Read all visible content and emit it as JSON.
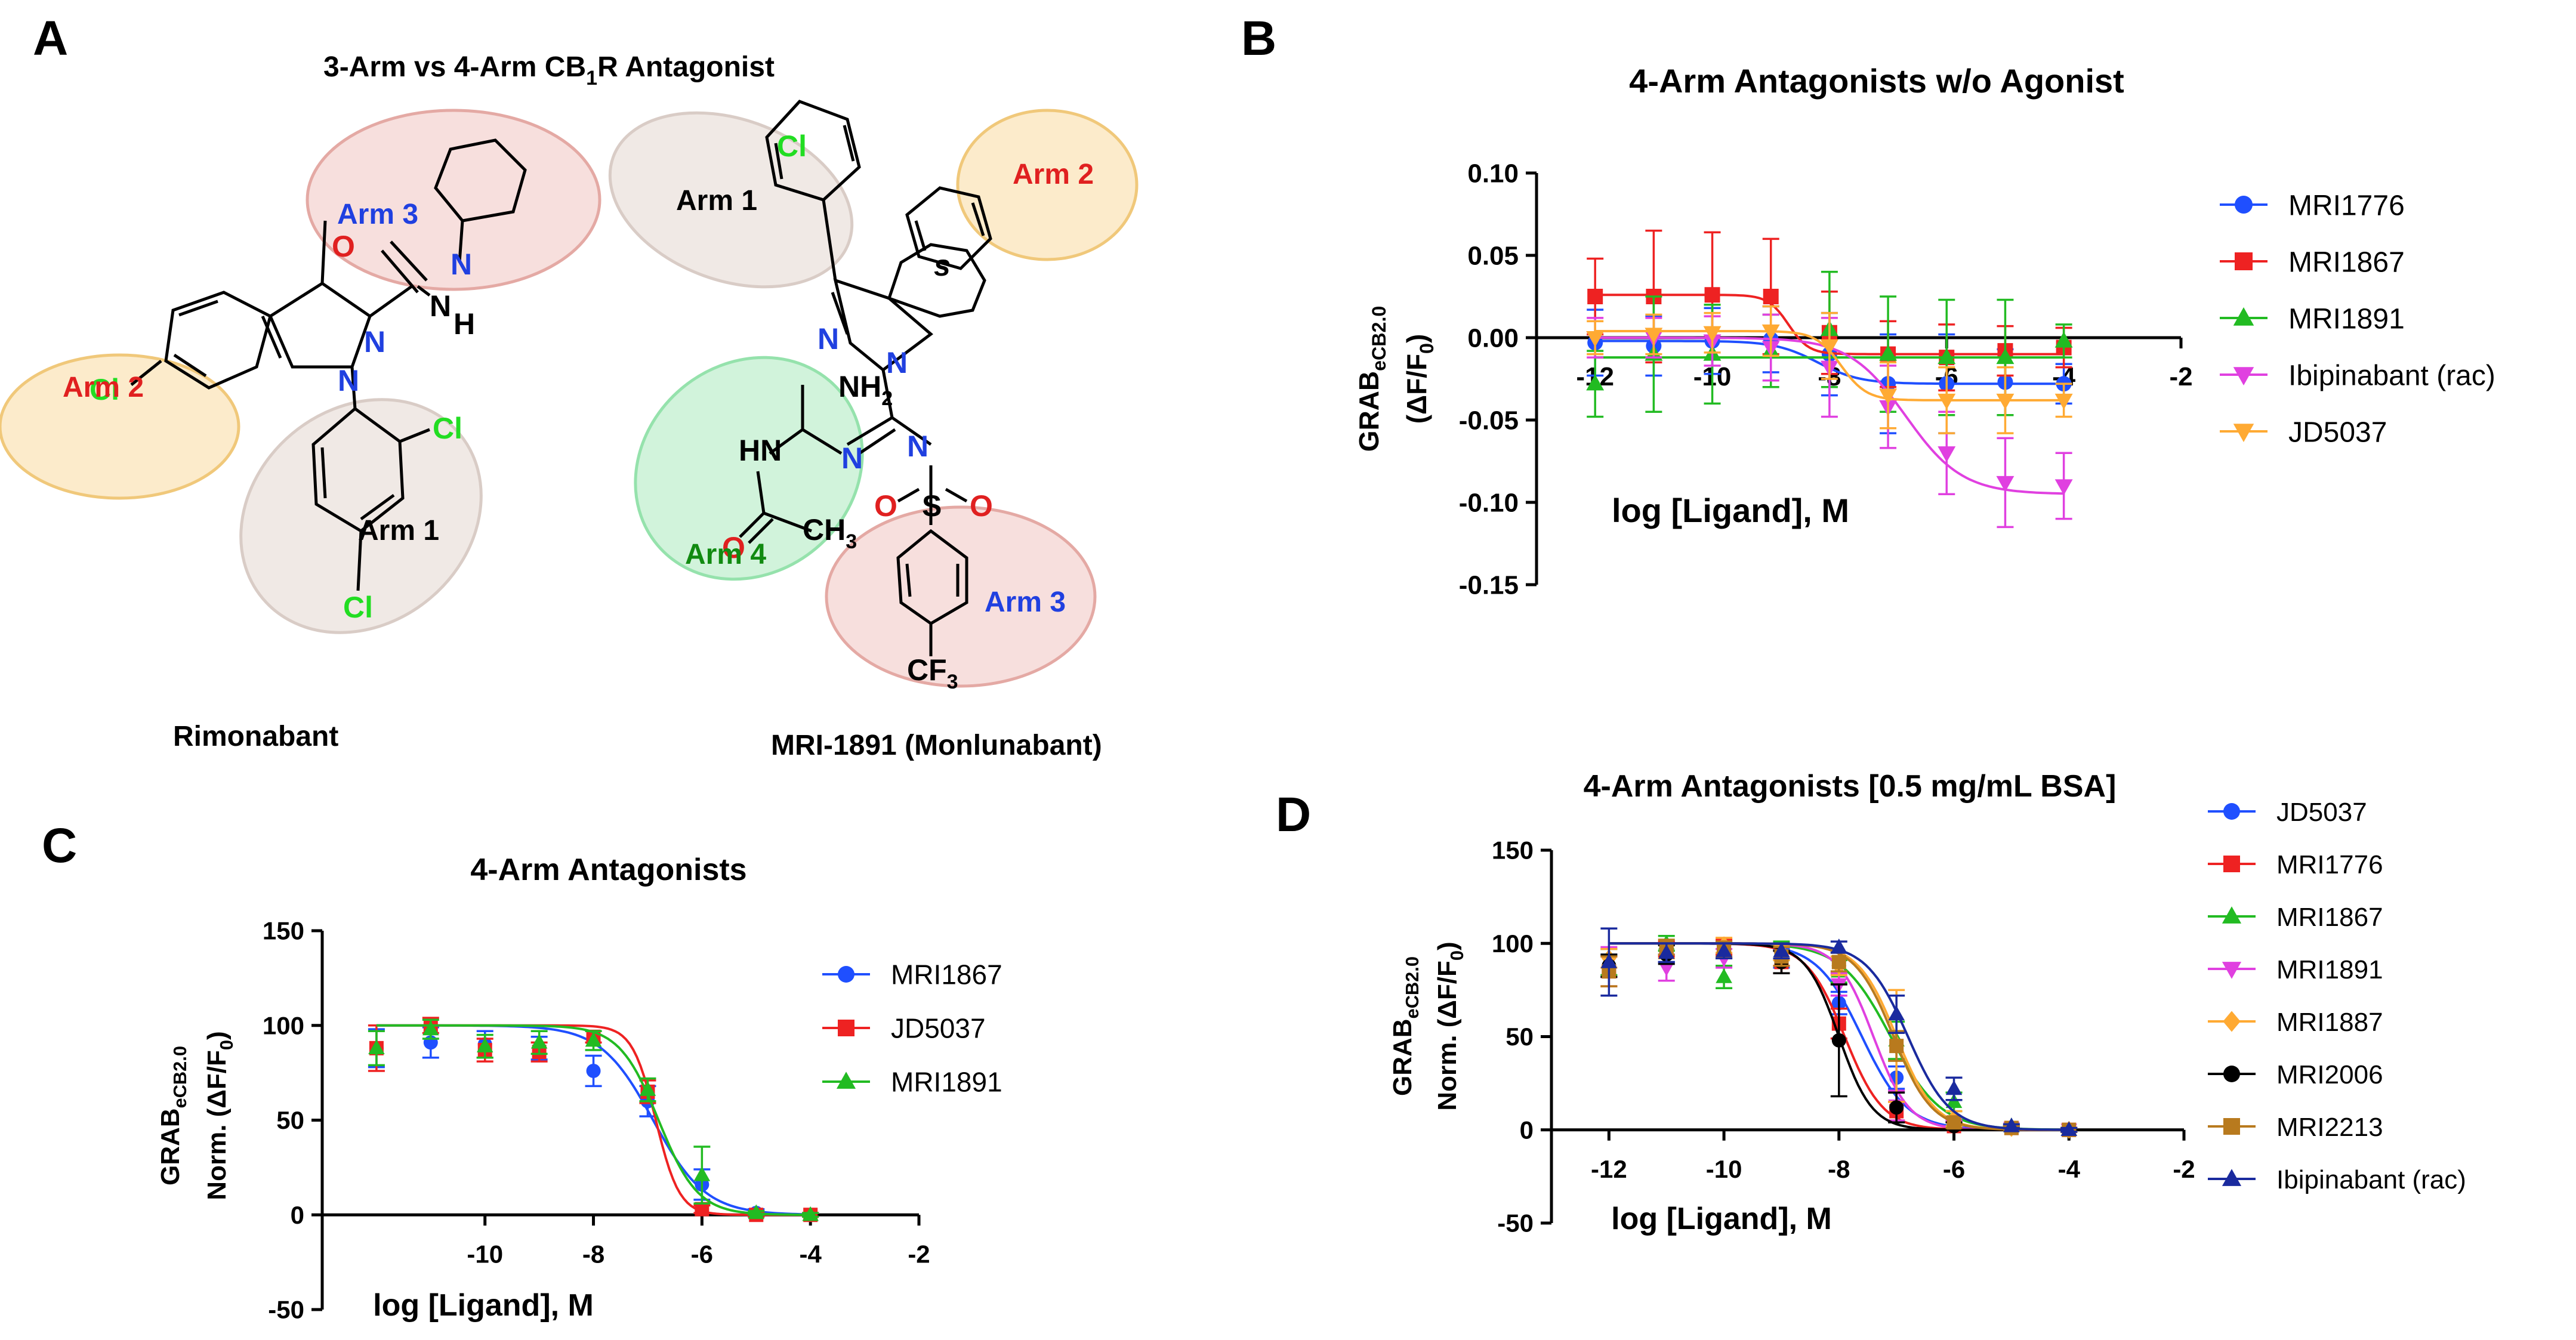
{
  "panel_labels": {
    "a": "A",
    "b": "B",
    "c": "C",
    "d": "D"
  },
  "panel_a": {
    "title_pre": "3-Arm vs  4-Arm CB",
    "title_sub": "1",
    "title_post": "R Antagonist",
    "rimonabant": {
      "name": "Rimonabant",
      "arm1": "Arm 1",
      "arm2": "Arm 2",
      "arm3": "Arm 3",
      "atoms": {
        "O": "O",
        "N": "N",
        "NH": "N",
        "H": "H",
        "Cl": "Cl"
      }
    },
    "mri1891": {
      "name": "MRI-1891 (Monlunabant)",
      "arm1": "Arm 1",
      "arm2": "Arm 2",
      "arm3": "Arm 3",
      "arm4": "Arm 4",
      "stereo": "s",
      "atoms": {
        "Cl": "Cl",
        "NH2": "NH",
        "sub2": "2",
        "HN": "HN",
        "N": "N",
        "O": "O",
        "S": "S",
        "CH3": "CH",
        "sub3": "3",
        "CF3": "CF",
        "F3": "3"
      }
    }
  },
  "chart_data": [
    {
      "id": "B",
      "type": "scatter",
      "title": "4-Arm Antagonists w/o Agonist",
      "xlabel": "log [Ligand], M",
      "ylabel_main": "GRAB",
      "ylabel_sub": "eCB2.0",
      "ylabel2": "(ΔF/F",
      "ylabel2_sub": "0",
      "ylabel2_end": ")",
      "xlim": [
        -13,
        -2
      ],
      "ylim": [
        -0.15,
        0.1
      ],
      "xticks": [
        -12,
        -10,
        -8,
        -6,
        -4,
        -2
      ],
      "xtick_labels": [
        "-12",
        "-10",
        "-8",
        "-6",
        "-4",
        "-2"
      ],
      "yticks": [
        0.1,
        0.05,
        0.0,
        -0.05,
        -0.1,
        -0.15
      ],
      "ytick_labels": [
        "0.10",
        "0.05",
        "0.00",
        "-0.05",
        "-0.10",
        "-0.15"
      ],
      "legend": "right",
      "series": [
        {
          "name": "MRI1776",
          "color": "#1f4fff",
          "marker": "circle",
          "x": [
            -12,
            -11,
            -10,
            -9,
            -8,
            -7,
            -6,
            -5,
            -4
          ],
          "y": [
            -0.003,
            -0.005,
            -0.002,
            -0.001,
            -0.01,
            -0.028,
            -0.028,
            -0.027,
            -0.028
          ],
          "err": [
            0.02,
            0.018,
            0.02,
            0.02,
            0.025,
            0.03,
            0.03,
            0.02,
            0.012
          ],
          "fit": {
            "top": -0.002,
            "bottom": -0.028,
            "logec50": -8.2,
            "hill": 1.2
          }
        },
        {
          "name": "MRI1867",
          "color": "#ee2222",
          "marker": "square",
          "x": [
            -12,
            -11,
            -10,
            -9,
            -8,
            -7,
            -6,
            -5,
            -4
          ],
          "y": [
            0.025,
            0.025,
            0.026,
            0.025,
            0.003,
            -0.01,
            -0.012,
            -0.008,
            -0.006
          ],
          "err": [
            0.023,
            0.04,
            0.038,
            0.035,
            0.025,
            0.02,
            0.02,
            0.015,
            0.012
          ],
          "fit": {
            "top": 0.026,
            "bottom": -0.01,
            "logec50": -8.7,
            "hill": 2.5
          }
        },
        {
          "name": "MRI1891",
          "color": "#22bb22",
          "marker": "triangle",
          "x": [
            -12,
            -11,
            -10,
            -9,
            -8,
            -7,
            -6,
            -5,
            -4
          ],
          "y": [
            -0.028,
            -0.01,
            -0.01,
            -0.008,
            0.005,
            -0.01,
            -0.012,
            -0.012,
            -0.002
          ],
          "err": [
            0.02,
            0.035,
            0.03,
            0.022,
            0.035,
            0.035,
            0.035,
            0.035,
            0.01
          ],
          "fit": {
            "top": -0.012,
            "bottom": -0.012,
            "logec50": -8,
            "hill": 1
          }
        },
        {
          "name": "Ibipinabant (rac)",
          "color": "#e040e0",
          "marker": "tri-down",
          "x": [
            -12,
            -11,
            -10,
            -9,
            -8,
            -7,
            -6,
            -5,
            -4
          ],
          "y": [
            0.0,
            0.0,
            -0.002,
            -0.006,
            -0.018,
            -0.042,
            -0.07,
            -0.088,
            -0.09
          ],
          "err": [
            0.012,
            0.012,
            0.015,
            0.02,
            0.03,
            0.025,
            0.025,
            0.027,
            0.02
          ],
          "fit": {
            "top": 0.0,
            "bottom": -0.095,
            "logec50": -6.7,
            "hill": 0.9
          }
        },
        {
          "name": "JD5037",
          "color": "#ffaa33",
          "marker": "tri-down",
          "x": [
            -12,
            -11,
            -10,
            -9,
            -8,
            -7,
            -6,
            -5,
            -4
          ],
          "y": [
            0.0,
            0.002,
            0.003,
            0.004,
            -0.005,
            -0.035,
            -0.038,
            -0.038,
            -0.038
          ],
          "err": [
            0.01,
            0.012,
            0.012,
            0.015,
            0.02,
            0.02,
            0.02,
            0.02,
            0.01
          ],
          "fit": {
            "top": 0.004,
            "bottom": -0.038,
            "logec50": -7.8,
            "hill": 2
          }
        }
      ]
    },
    {
      "id": "C",
      "type": "scatter",
      "title": "4-Arm Antagonists",
      "xlabel": "log [Ligand], M",
      "ylabel_main": "GRAB",
      "ylabel_sub": "eCB2.0",
      "ylabel2": "Norm. (ΔF/F",
      "ylabel2_sub": "0",
      "ylabel2_end": ")",
      "xlim": [
        -13,
        -2
      ],
      "ylim": [
        -50,
        150
      ],
      "xticks": [
        -10,
        -8,
        -6,
        -4,
        -2
      ],
      "xtick_labels": [
        "-10",
        "-8",
        "-6",
        "-4",
        "-2"
      ],
      "yticks": [
        150,
        100,
        50,
        0,
        -50
      ],
      "ytick_labels": [
        "150",
        "100",
        "50",
        "0",
        "-50"
      ],
      "legend": "right",
      "series": [
        {
          "name": "MRI1867",
          "color": "#1f4fff",
          "marker": "circle",
          "x": [
            -12,
            -11,
            -10,
            -9,
            -8,
            -7,
            -6,
            -5,
            -4
          ],
          "y": [
            88,
            91,
            90,
            88,
            76,
            60,
            16,
            1,
            0
          ],
          "err": [
            10,
            8,
            7,
            6,
            8,
            8,
            8,
            2,
            1
          ],
          "fit": {
            "top": 100,
            "bottom": 0,
            "logec50": -6.9,
            "hill": 0.9
          }
        },
        {
          "name": "JD5037",
          "color": "#ee2222",
          "marker": "square",
          "x": [
            -12,
            -11,
            -10,
            -9,
            -8,
            -7,
            -6,
            -5,
            -4
          ],
          "y": [
            88,
            100,
            87,
            86,
            94,
            65,
            3,
            0,
            0
          ],
          "err": [
            12,
            4,
            6,
            5,
            3,
            6,
            2,
            1,
            1
          ],
          "fit": {
            "top": 100,
            "bottom": 0,
            "logec50": -6.85,
            "hill": 2
          }
        },
        {
          "name": "MRI1891",
          "color": "#22bb22",
          "marker": "triangle",
          "x": [
            -12,
            -11,
            -10,
            -9,
            -8,
            -7,
            -6,
            -5,
            -4
          ],
          "y": [
            88,
            98,
            89,
            91,
            92,
            66,
            21,
            1,
            0
          ],
          "err": [
            9,
            5,
            6,
            6,
            5,
            6,
            15,
            1,
            1
          ],
          "fit": {
            "top": 100,
            "bottom": 0,
            "logec50": -6.8,
            "hill": 1.2
          }
        }
      ]
    },
    {
      "id": "D",
      "type": "scatter",
      "title": "4-Arm Antagonists [0.5 mg/mL BSA]",
      "xlabel": "log [Ligand], M",
      "ylabel_main": "GRAB",
      "ylabel_sub": "eCB2.0",
      "ylabel2": "Norm. (ΔF/F",
      "ylabel2_sub": "0",
      "ylabel2_end": ")",
      "xlim": [
        -13,
        -2
      ],
      "ylim": [
        -50,
        150
      ],
      "xticks": [
        -12,
        -10,
        -8,
        -6,
        -4,
        -2
      ],
      "xtick_labels": [
        "-12",
        "-10",
        "-8",
        "-6",
        "-4",
        "-2"
      ],
      "yticks": [
        150,
        100,
        50,
        0,
        -50
      ],
      "ytick_labels": [
        "150",
        "100",
        "50",
        "0",
        "-50"
      ],
      "legend": "right",
      "series": [
        {
          "name": "JD5037",
          "color": "#1f4fff",
          "marker": "circle",
          "x": [
            -12,
            -11,
            -10,
            -9,
            -8,
            -7,
            -6,
            -5,
            -4
          ],
          "y": [
            88,
            95,
            97,
            92,
            68,
            28,
            3,
            1,
            0
          ],
          "err": [
            6,
            5,
            4,
            5,
            6,
            6,
            2,
            1,
            1
          ],
          "fit": {
            "top": 100,
            "bottom": 0,
            "logec50": -7.6,
            "hill": 1.1
          }
        },
        {
          "name": "MRI1776",
          "color": "#ee2222",
          "marker": "square",
          "x": [
            -12,
            -11,
            -10,
            -9,
            -8,
            -7,
            -6,
            -5,
            -4
          ],
          "y": [
            85,
            97,
            98,
            90,
            57,
            10,
            2,
            1,
            0
          ],
          "err": [
            8,
            4,
            4,
            6,
            8,
            5,
            2,
            1,
            1
          ],
          "fit": {
            "top": 100,
            "bottom": 0,
            "logec50": -7.9,
            "hill": 1.3
          }
        },
        {
          "name": "MRI1867",
          "color": "#22bb22",
          "marker": "triangle",
          "x": [
            -12,
            -11,
            -10,
            -9,
            -8,
            -7,
            -6,
            -5,
            -4
          ],
          "y": [
            90,
            100,
            82,
            96,
            85,
            48,
            15,
            2,
            0
          ],
          "err": [
            7,
            4,
            6,
            5,
            6,
            10,
            5,
            1,
            1
          ],
          "fit": {
            "top": 100,
            "bottom": 0,
            "logec50": -7.1,
            "hill": 1
          }
        },
        {
          "name": "MRI1891",
          "color": "#e040e0",
          "marker": "tri-down",
          "x": [
            -12,
            -11,
            -10,
            -9,
            -8,
            -7,
            -6,
            -5,
            -4
          ],
          "y": [
            90,
            87,
            92,
            93,
            78,
            13,
            3,
            1,
            0
          ],
          "err": [
            8,
            7,
            5,
            5,
            6,
            8,
            2,
            1,
            1
          ],
          "fit": {
            "top": 100,
            "bottom": 0,
            "logec50": -7.4,
            "hill": 1.4
          }
        },
        {
          "name": "MRI1887",
          "color": "#ffaa33",
          "marker": "diamond",
          "x": [
            -12,
            -11,
            -10,
            -9,
            -8,
            -7,
            -6,
            -5,
            -4
          ],
          "y": [
            92,
            96,
            99,
            95,
            88,
            45,
            6,
            1,
            0
          ],
          "err": [
            5,
            4,
            4,
            4,
            5,
            30,
            4,
            1,
            1
          ],
          "fit": {
            "top": 100,
            "bottom": 0,
            "logec50": -7.0,
            "hill": 1.3
          }
        },
        {
          "name": "MRI2006",
          "color": "#000000",
          "marker": "circle",
          "x": [
            -12,
            -11,
            -10,
            -9,
            -8,
            -7,
            -6,
            -5,
            -4
          ],
          "y": [
            88,
            94,
            96,
            90,
            48,
            12,
            2,
            1,
            0
          ],
          "err": [
            6,
            5,
            4,
            6,
            30,
            8,
            2,
            1,
            1
          ],
          "fit": {
            "top": 100,
            "bottom": 0,
            "logec50": -8.0,
            "hill": 1.5
          }
        },
        {
          "name": "MRI2213",
          "color": "#b87a1e",
          "marker": "square",
          "x": [
            -12,
            -11,
            -10,
            -9,
            -8,
            -7,
            -6,
            -5,
            -4
          ],
          "y": [
            85,
            98,
            97,
            93,
            90,
            45,
            4,
            1,
            0
          ],
          "err": [
            8,
            4,
            4,
            5,
            5,
            8,
            3,
            1,
            1
          ],
          "fit": {
            "top": 100,
            "bottom": 0,
            "logec50": -7.05,
            "hill": 1.3
          }
        },
        {
          "name": "Ibipinabant (rac)",
          "color": "#1a2a9e",
          "marker": "triangle",
          "x": [
            -12,
            -11,
            -10,
            -9,
            -8,
            -7,
            -6,
            -5,
            -4
          ],
          "y": [
            90,
            95,
            96,
            96,
            98,
            62,
            22,
            2,
            0
          ],
          "err": [
            18,
            5,
            4,
            4,
            3,
            10,
            6,
            1,
            1
          ],
          "fit": {
            "top": 100,
            "bottom": 0,
            "logec50": -6.8,
            "hill": 1.2
          }
        }
      ]
    }
  ]
}
